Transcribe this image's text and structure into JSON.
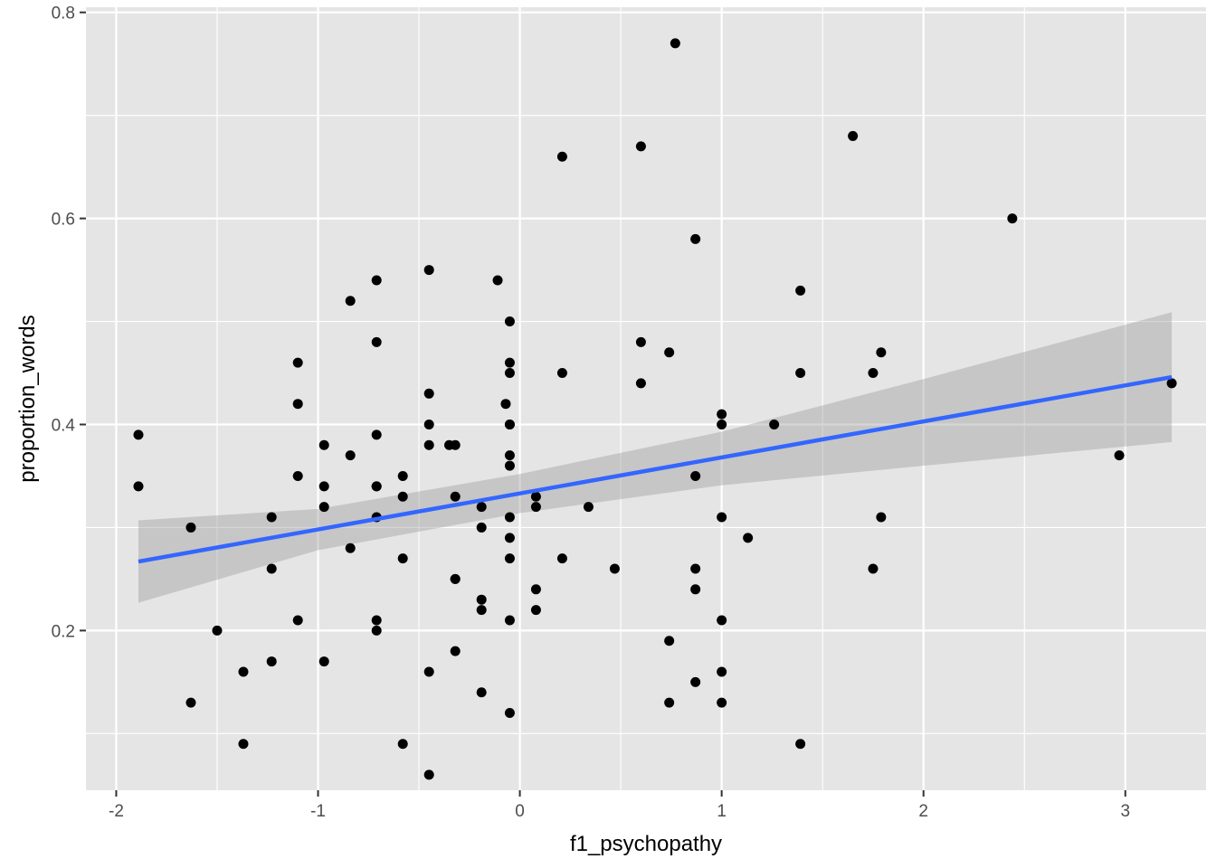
{
  "chart_data": {
    "type": "scatter",
    "xlabel": "f1_psychopathy",
    "ylabel": "proportion_words",
    "xlim": [
      -2.15,
      3.4
    ],
    "ylim": [
      0.045,
      0.805
    ],
    "x_ticks": [
      -2,
      -1,
      0,
      1,
      2,
      3
    ],
    "x_tick_labels": [
      "-2",
      "-1",
      "0",
      "1",
      "2",
      "3"
    ],
    "y_ticks": [
      0.2,
      0.4,
      0.6,
      0.8
    ],
    "y_tick_labels": [
      "0.2",
      "0.4",
      "0.6",
      "0.8"
    ],
    "grid": true,
    "colors": {
      "panel_background": "#e5e5e5",
      "grid_line": "#ffffff",
      "point": "#000000",
      "trend_line": "#3366ff",
      "confidence_band": "#999999"
    },
    "points": [
      {
        "x": -1.89,
        "y": 0.39
      },
      {
        "x": -1.89,
        "y": 0.34
      },
      {
        "x": -1.63,
        "y": 0.3
      },
      {
        "x": -1.63,
        "y": 0.13
      },
      {
        "x": -1.5,
        "y": 0.2
      },
      {
        "x": -1.37,
        "y": 0.16
      },
      {
        "x": -1.37,
        "y": 0.09
      },
      {
        "x": -1.23,
        "y": 0.31
      },
      {
        "x": -1.23,
        "y": 0.26
      },
      {
        "x": -1.23,
        "y": 0.17
      },
      {
        "x": -1.1,
        "y": 0.46
      },
      {
        "x": -1.1,
        "y": 0.42
      },
      {
        "x": -1.1,
        "y": 0.35
      },
      {
        "x": -1.1,
        "y": 0.21
      },
      {
        "x": -0.97,
        "y": 0.38
      },
      {
        "x": -0.97,
        "y": 0.34
      },
      {
        "x": -0.97,
        "y": 0.32
      },
      {
        "x": -0.97,
        "y": 0.17
      },
      {
        "x": -0.84,
        "y": 0.52
      },
      {
        "x": -0.84,
        "y": 0.37
      },
      {
        "x": -0.84,
        "y": 0.28
      },
      {
        "x": -0.71,
        "y": 0.54
      },
      {
        "x": -0.71,
        "y": 0.48
      },
      {
        "x": -0.71,
        "y": 0.39
      },
      {
        "x": -0.71,
        "y": 0.34
      },
      {
        "x": -0.71,
        "y": 0.34
      },
      {
        "x": -0.71,
        "y": 0.31
      },
      {
        "x": -0.71,
        "y": 0.21
      },
      {
        "x": -0.71,
        "y": 0.2
      },
      {
        "x": -0.58,
        "y": 0.35
      },
      {
        "x": -0.58,
        "y": 0.33
      },
      {
        "x": -0.58,
        "y": 0.27
      },
      {
        "x": -0.58,
        "y": 0.09
      },
      {
        "x": -0.45,
        "y": 0.55
      },
      {
        "x": -0.45,
        "y": 0.43
      },
      {
        "x": -0.45,
        "y": 0.4
      },
      {
        "x": -0.45,
        "y": 0.38
      },
      {
        "x": -0.45,
        "y": 0.16
      },
      {
        "x": -0.45,
        "y": 0.06
      },
      {
        "x": -0.35,
        "y": 0.38
      },
      {
        "x": -0.32,
        "y": 0.38
      },
      {
        "x": -0.32,
        "y": 0.33
      },
      {
        "x": -0.32,
        "y": 0.25
      },
      {
        "x": -0.32,
        "y": 0.25
      },
      {
        "x": -0.32,
        "y": 0.18
      },
      {
        "x": -0.19,
        "y": 0.32
      },
      {
        "x": -0.19,
        "y": 0.3
      },
      {
        "x": -0.19,
        "y": 0.23
      },
      {
        "x": -0.19,
        "y": 0.22
      },
      {
        "x": -0.19,
        "y": 0.14
      },
      {
        "x": -0.11,
        "y": 0.54
      },
      {
        "x": -0.07,
        "y": 0.42
      },
      {
        "x": -0.05,
        "y": 0.5
      },
      {
        "x": -0.05,
        "y": 0.46
      },
      {
        "x": -0.05,
        "y": 0.45
      },
      {
        "x": -0.05,
        "y": 0.4
      },
      {
        "x": -0.05,
        "y": 0.4
      },
      {
        "x": -0.05,
        "y": 0.37
      },
      {
        "x": -0.05,
        "y": 0.36
      },
      {
        "x": -0.05,
        "y": 0.31
      },
      {
        "x": -0.05,
        "y": 0.29
      },
      {
        "x": -0.05,
        "y": 0.27
      },
      {
        "x": -0.05,
        "y": 0.21
      },
      {
        "x": -0.05,
        "y": 0.12
      },
      {
        "x": 0.08,
        "y": 0.33
      },
      {
        "x": 0.08,
        "y": 0.32
      },
      {
        "x": 0.08,
        "y": 0.24
      },
      {
        "x": 0.08,
        "y": 0.22
      },
      {
        "x": 0.21,
        "y": 0.66
      },
      {
        "x": 0.21,
        "y": 0.45
      },
      {
        "x": 0.21,
        "y": 0.27
      },
      {
        "x": 0.34,
        "y": 0.32
      },
      {
        "x": 0.47,
        "y": 0.26
      },
      {
        "x": 0.6,
        "y": 0.67
      },
      {
        "x": 0.6,
        "y": 0.48
      },
      {
        "x": 0.6,
        "y": 0.44
      },
      {
        "x": 0.74,
        "y": 0.47
      },
      {
        "x": 0.74,
        "y": 0.19
      },
      {
        "x": 0.74,
        "y": 0.13
      },
      {
        "x": 0.77,
        "y": 0.77
      },
      {
        "x": 0.87,
        "y": 0.58
      },
      {
        "x": 0.87,
        "y": 0.35
      },
      {
        "x": 0.87,
        "y": 0.26
      },
      {
        "x": 0.87,
        "y": 0.24
      },
      {
        "x": 0.87,
        "y": 0.15
      },
      {
        "x": 1.0,
        "y": 0.41
      },
      {
        "x": 1.0,
        "y": 0.4
      },
      {
        "x": 1.0,
        "y": 0.31
      },
      {
        "x": 1.0,
        "y": 0.21
      },
      {
        "x": 1.0,
        "y": 0.16
      },
      {
        "x": 1.0,
        "y": 0.13
      },
      {
        "x": 1.13,
        "y": 0.29
      },
      {
        "x": 1.26,
        "y": 0.4
      },
      {
        "x": 1.39,
        "y": 0.53
      },
      {
        "x": 1.39,
        "y": 0.45
      },
      {
        "x": 1.39,
        "y": 0.09
      },
      {
        "x": 1.65,
        "y": 0.68
      },
      {
        "x": 1.75,
        "y": 0.45
      },
      {
        "x": 1.75,
        "y": 0.26
      },
      {
        "x": 1.79,
        "y": 0.47
      },
      {
        "x": 1.79,
        "y": 0.31
      },
      {
        "x": 2.44,
        "y": 0.6
      },
      {
        "x": 2.97,
        "y": 0.37
      },
      {
        "x": 3.23,
        "y": 0.44
      }
    ],
    "trend_line": {
      "x": [
        -1.89,
        3.23
      ],
      "y": [
        0.267,
        0.446
      ]
    },
    "confidence_band": {
      "x": [
        -1.89,
        -1.0,
        0.0,
        1.0,
        2.0,
        3.23
      ],
      "upper": [
        0.307,
        0.318,
        0.352,
        0.393,
        0.444,
        0.509
      ],
      "lower": [
        0.227,
        0.278,
        0.314,
        0.341,
        0.36,
        0.383
      ]
    }
  }
}
